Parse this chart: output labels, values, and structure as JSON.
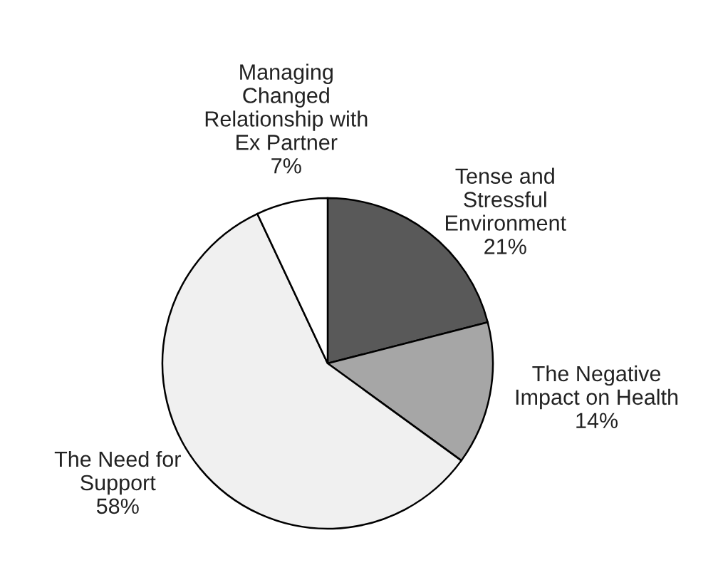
{
  "chart_data": {
    "type": "pie",
    "categories": [
      "Tense and\nStressful\nEnvironment",
      "The Negative\nImpact on Health",
      "The Need for\nSupport",
      "Managing\nChanged\nRelationship with\nEx Partner"
    ],
    "values": [
      21,
      14,
      58,
      7
    ],
    "colors": [
      "#595959",
      "#a6a6a6",
      "#f0f0f0",
      "#ffffff"
    ],
    "value_labels": [
      "21%",
      "14%",
      "58%",
      "7%"
    ]
  }
}
